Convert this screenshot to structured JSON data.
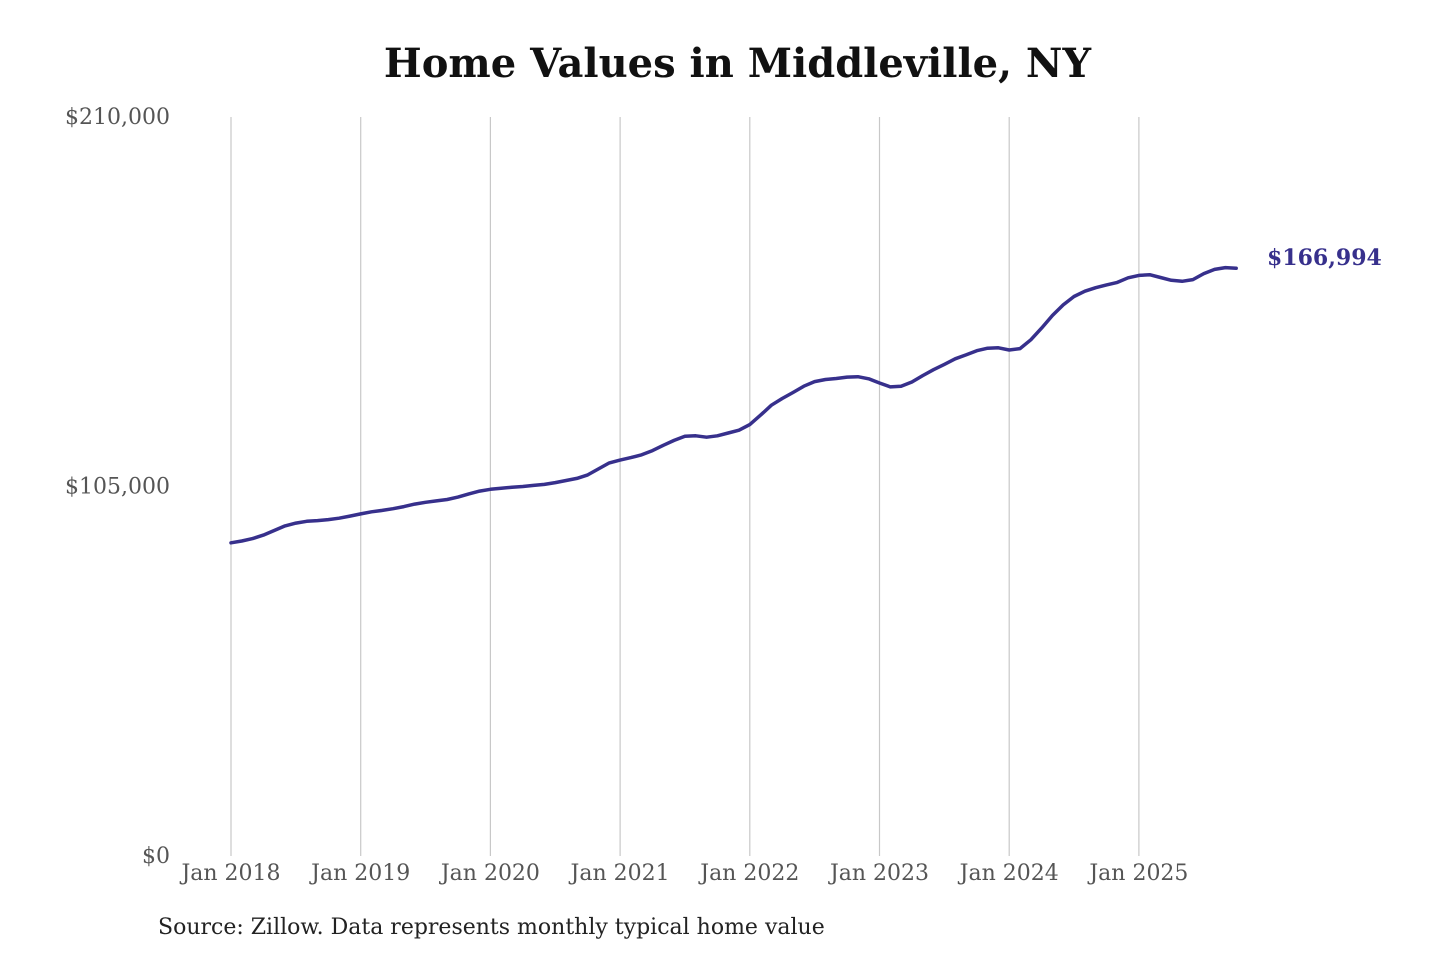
{
  "chart_data": {
    "type": "line",
    "title": "Home Values in Middleville, NY",
    "source": "Source: Zillow. Data represents monthly typical home value",
    "ylim": [
      0,
      210000
    ],
    "yticks": [
      {
        "value": 0,
        "label": "$0"
      },
      {
        "value": 105000,
        "label": "$105,000"
      },
      {
        "value": 210000,
        "label": "$210,000"
      }
    ],
    "xticks": [
      {
        "date": "2018-01",
        "label": "Jan 2018"
      },
      {
        "date": "2019-01",
        "label": "Jan 2019"
      },
      {
        "date": "2020-01",
        "label": "Jan 2020"
      },
      {
        "date": "2021-01",
        "label": "Jan 2021"
      },
      {
        "date": "2022-01",
        "label": "Jan 2022"
      },
      {
        "date": "2023-01",
        "label": "Jan 2023"
      },
      {
        "date": "2024-01",
        "label": "Jan 2024"
      },
      {
        "date": "2025-01",
        "label": "Jan 2025"
      }
    ],
    "grid": "vertical",
    "line_color": "#37308c",
    "end_label": "$166,994",
    "series": [
      {
        "points": [
          [
            "2018-01",
            89000
          ],
          [
            "2018-02",
            89500
          ],
          [
            "2018-03",
            90200
          ],
          [
            "2018-04",
            91200
          ],
          [
            "2018-05",
            92500
          ],
          [
            "2018-06",
            93800
          ],
          [
            "2018-07",
            94600
          ],
          [
            "2018-08",
            95100
          ],
          [
            "2018-09",
            95300
          ],
          [
            "2018-10",
            95600
          ],
          [
            "2018-11",
            96000
          ],
          [
            "2018-12",
            96600
          ],
          [
            "2019-01",
            97200
          ],
          [
            "2019-02",
            97800
          ],
          [
            "2019-03",
            98200
          ],
          [
            "2019-04",
            98700
          ],
          [
            "2019-05",
            99300
          ],
          [
            "2019-06",
            100000
          ],
          [
            "2019-07",
            100500
          ],
          [
            "2019-08",
            100900
          ],
          [
            "2019-09",
            101300
          ],
          [
            "2019-10",
            102000
          ],
          [
            "2019-11",
            102900
          ],
          [
            "2019-12",
            103700
          ],
          [
            "2020-01",
            104200
          ],
          [
            "2020-02",
            104500
          ],
          [
            "2020-03",
            104800
          ],
          [
            "2020-04",
            105000
          ],
          [
            "2020-05",
            105300
          ],
          [
            "2020-06",
            105600
          ],
          [
            "2020-07",
            106100
          ],
          [
            "2020-08",
            106700
          ],
          [
            "2020-09",
            107300
          ],
          [
            "2020-10",
            108300
          ],
          [
            "2020-11",
            110000
          ],
          [
            "2020-12",
            111700
          ],
          [
            "2021-01",
            112500
          ],
          [
            "2021-02",
            113200
          ],
          [
            "2021-03",
            114000
          ],
          [
            "2021-04",
            115200
          ],
          [
            "2021-05",
            116700
          ],
          [
            "2021-06",
            118100
          ],
          [
            "2021-07",
            119300
          ],
          [
            "2021-08",
            119400
          ],
          [
            "2021-09",
            119000
          ],
          [
            "2021-10",
            119400
          ],
          [
            "2021-11",
            120200
          ],
          [
            "2021-12",
            121000
          ],
          [
            "2022-01",
            122600
          ],
          [
            "2022-02",
            125300
          ],
          [
            "2022-03",
            128100
          ],
          [
            "2022-04",
            130000
          ],
          [
            "2022-05",
            131700
          ],
          [
            "2022-06",
            133500
          ],
          [
            "2022-07",
            134800
          ],
          [
            "2022-08",
            135400
          ],
          [
            "2022-09",
            135700
          ],
          [
            "2022-10",
            136100
          ],
          [
            "2022-11",
            136200
          ],
          [
            "2022-12",
            135600
          ],
          [
            "2023-01",
            134400
          ],
          [
            "2023-02",
            133300
          ],
          [
            "2023-03",
            133500
          ],
          [
            "2023-04",
            134700
          ],
          [
            "2023-05",
            136500
          ],
          [
            "2023-06",
            138200
          ],
          [
            "2023-07",
            139700
          ],
          [
            "2023-08",
            141300
          ],
          [
            "2023-09",
            142400
          ],
          [
            "2023-10",
            143600
          ],
          [
            "2023-11",
            144300
          ],
          [
            "2023-12",
            144400
          ],
          [
            "2024-01",
            143800
          ],
          [
            "2024-02",
            144200
          ],
          [
            "2024-03",
            146700
          ],
          [
            "2024-04",
            150000
          ],
          [
            "2024-05",
            153600
          ],
          [
            "2024-06",
            156600
          ],
          [
            "2024-07",
            159000
          ],
          [
            "2024-08",
            160500
          ],
          [
            "2024-09",
            161500
          ],
          [
            "2024-10",
            162300
          ],
          [
            "2024-11",
            163000
          ],
          [
            "2024-12",
            164300
          ],
          [
            "2025-01",
            165000
          ],
          [
            "2025-02",
            165200
          ],
          [
            "2025-03",
            164400
          ],
          [
            "2025-04",
            163600
          ],
          [
            "2025-05",
            163300
          ],
          [
            "2025-06",
            163800
          ],
          [
            "2025-07",
            165500
          ],
          [
            "2025-08",
            166700
          ],
          [
            "2025-09",
            167200
          ],
          [
            "2025-10",
            166994
          ]
        ]
      }
    ]
  }
}
